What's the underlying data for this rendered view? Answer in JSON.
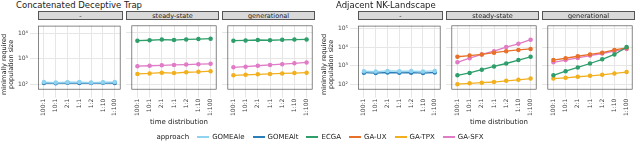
{
  "chart_data": [
    {
      "type": "line",
      "title": "Concatenated Deceptive Trap",
      "x_label": "time distribution",
      "y_label": "minimally required population size",
      "categories": [
        "100:1",
        "10:1",
        "2:1",
        "1:1",
        "1:2",
        "1:10",
        "1:100"
      ],
      "log": "y",
      "grid": true,
      "legend": "bottom",
      "legend_title": "approach",
      "ylim": [
        60,
        20000
      ],
      "yticks": [
        {
          "value": 100,
          "label": "10²"
        },
        {
          "value": 1000,
          "label": "10³"
        },
        {
          "value": 10000,
          "label": "10⁴"
        }
      ],
      "facets": [
        {
          "title": "-",
          "series": [
            {
              "name": "GOMEAle",
              "color": "#8fd3f0",
              "values": [
                120,
                115,
                118,
                120,
                115,
                118,
                120
              ]
            },
            {
              "name": "GOMEAlt",
              "color": "#2a7fb8",
              "values": [
                110,
                108,
                112,
                110,
                110,
                112,
                110
              ]
            }
          ]
        },
        {
          "title": "steady-state",
          "series": [
            {
              "name": "ECGA",
              "color": "#2e9e6b",
              "values": [
                5000,
                5200,
                5500,
                5300,
                5600,
                5800,
                6000
              ]
            },
            {
              "name": "GA-TPX",
              "color": "#f2b01e",
              "values": [
                250,
                260,
                280,
                270,
                290,
                300,
                320
              ]
            },
            {
              "name": "GA-SFX",
              "color": "#e07bc6",
              "values": [
                500,
                520,
                540,
                560,
                580,
                600,
                620
              ]
            }
          ]
        },
        {
          "title": "generational",
          "series": [
            {
              "name": "ECGA",
              "color": "#2e9e6b",
              "values": [
                5000,
                5100,
                5300,
                5200,
                5400,
                5500,
                5600
              ]
            },
            {
              "name": "GA-TPX",
              "color": "#f2b01e",
              "values": [
                220,
                230,
                240,
                250,
                260,
                270,
                280
              ]
            },
            {
              "name": "GA-SFX",
              "color": "#e07bc6",
              "values": [
                450,
                480,
                520,
                560,
                600,
                650,
                700
              ]
            }
          ]
        }
      ]
    },
    {
      "type": "line",
      "title": "Adjacent NK-Landscape",
      "x_label": "time distribution",
      "y_label": "minimally required population size",
      "categories": [
        "100:1",
        "10:1",
        "2:1",
        "1:1",
        "1:2",
        "1:10",
        "1:100"
      ],
      "log": "y",
      "grid": true,
      "ylim": [
        50,
        150000
      ],
      "yticks": [
        {
          "value": 100,
          "label": "10²"
        },
        {
          "value": 1000,
          "label": "10³"
        },
        {
          "value": 10000,
          "label": "10⁴"
        },
        {
          "value": 100000,
          "label": "10⁵"
        }
      ],
      "facets": [
        {
          "title": "-",
          "series": [
            {
              "name": "GOMEAle",
              "color": "#8fd3f0",
              "values": [
                500,
                480,
                520,
                500,
                510,
                490,
                520
              ]
            },
            {
              "name": "GOMEAlt",
              "color": "#2a7fb8",
              "values": [
                420,
                400,
                430,
                410,
                420,
                400,
                430
              ]
            }
          ]
        },
        {
          "title": "steady-state",
          "series": [
            {
              "name": "ECGA",
              "color": "#2e9e6b",
              "values": [
                300,
                400,
                600,
                900,
                1300,
                2000,
                3000
              ]
            },
            {
              "name": "GA-UX",
              "color": "#e8702a",
              "values": [
                3000,
                3500,
                4000,
                5000,
                6000,
                7000,
                8000
              ]
            },
            {
              "name": "GA-TPX",
              "color": "#f2b01e",
              "values": [
                100,
                110,
                120,
                130,
                150,
                170,
                200
              ]
            },
            {
              "name": "GA-SFX",
              "color": "#e07bc6",
              "values": [
                1500,
                2500,
                4000,
                6000,
                10000,
                15000,
                25000
              ]
            }
          ]
        },
        {
          "title": "generational",
          "series": [
            {
              "name": "ECGA",
              "color": "#2e9e6b",
              "values": [
                300,
                500,
                800,
                1300,
                2200,
                4000,
                10000
              ]
            },
            {
              "name": "GA-UX",
              "color": "#e8702a",
              "values": [
                2000,
                2500,
                3200,
                4000,
                5000,
                7000,
                9000
              ]
            },
            {
              "name": "GA-TPX",
              "color": "#f2b01e",
              "values": [
                200,
                220,
                250,
                280,
                320,
                380,
                450
              ]
            },
            {
              "name": "GA-SFX",
              "color": "#e07bc6",
              "values": [
                1500,
                2000,
                2600,
                3500,
                4500,
                6000,
                8000
              ]
            }
          ]
        }
      ]
    }
  ]
}
